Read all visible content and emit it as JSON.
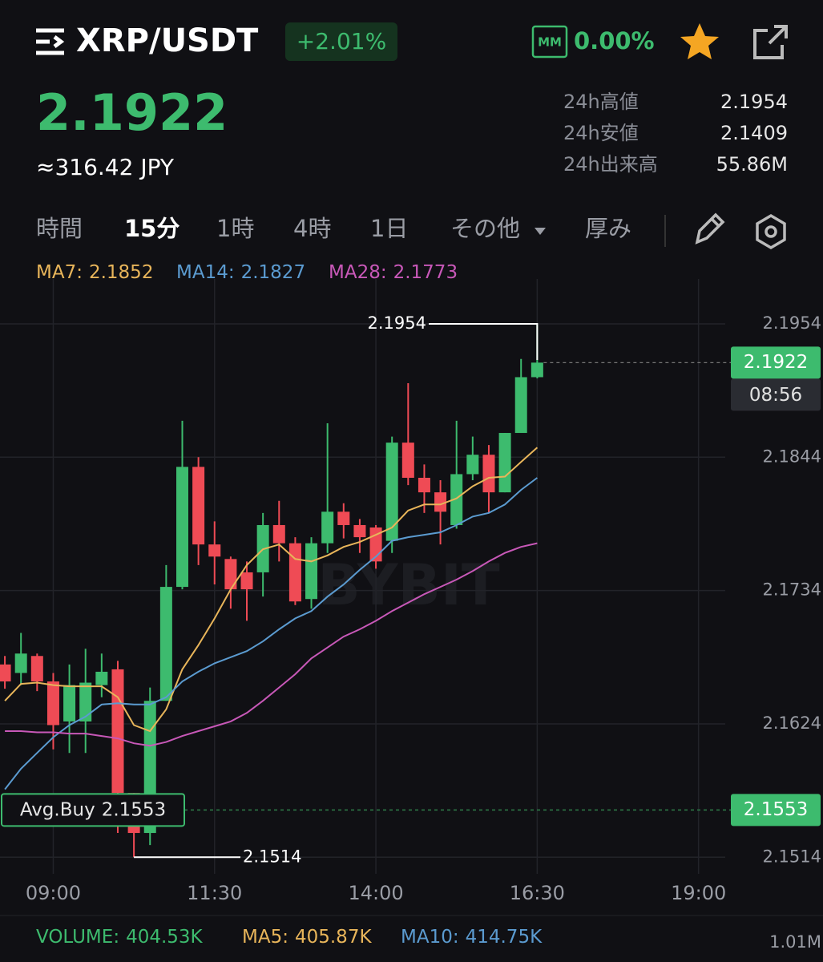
{
  "header": {
    "symbol": "XRP/USDT",
    "change": "+2.01%",
    "mm_badge": "MM",
    "mm_value": "0.00%"
  },
  "price": {
    "last": "2.1922",
    "jpy": "≈316.42 JPY"
  },
  "stats": [
    {
      "label": "24h高値",
      "value": "2.1954"
    },
    {
      "label": "24h安値",
      "value": "2.1409"
    },
    {
      "label": "24h出来高",
      "value": "55.86M"
    }
  ],
  "tabs": [
    "時間",
    "15分",
    "1時",
    "4時",
    "1日",
    "その他",
    "厚み"
  ],
  "active_tab": 1,
  "chart_data": {
    "type": "candlestick",
    "categories": [
      null,
      null,
      null,
      "09:00",
      null,
      null,
      null,
      null,
      null,
      null,
      null,
      null,
      null,
      "11:30",
      null,
      null,
      null,
      null,
      null,
      null,
      null,
      null,
      null,
      "14:00",
      null,
      null,
      null,
      null,
      null,
      null,
      null,
      null,
      null,
      "16:30",
      null,
      null,
      null,
      null,
      null,
      null,
      null,
      null,
      null,
      "19:00"
    ],
    "open": [
      2.1673,
      2.1666,
      2.168,
      2.1659,
      2.1626,
      2.1626,
      2.1656,
      2.1669,
      2.1567,
      2.1534,
      2.1643,
      2.1737,
      2.1836,
      2.1772,
      2.176,
      2.1749,
      2.1749,
      2.1788,
      2.1773,
      2.1727,
      2.1773,
      2.1799,
      2.1788,
      2.1786,
      2.1775,
      2.1856,
      2.1827,
      2.1815,
      2.1788,
      2.183,
      2.1846,
      2.1815,
      2.1864,
      2.191,
      null,
      null,
      null,
      null,
      null,
      null,
      null,
      null,
      null,
      null
    ],
    "high": [
      2.168,
      2.1699,
      2.1682,
      2.1666,
      2.1673,
      2.1686,
      2.1682,
      2.1676,
      2.1567,
      2.1654,
      2.1755,
      2.1874,
      2.1844,
      2.1791,
      2.1762,
      2.1758,
      2.1798,
      2.1808,
      2.1778,
      2.1778,
      2.1872,
      2.1806,
      2.1793,
      2.1788,
      2.1861,
      2.1905,
      2.1838,
      2.1825,
      2.1874,
      2.1861,
      2.1854,
      2.1864,
      2.1925,
      2.1954,
      null,
      null,
      null,
      null,
      null,
      null,
      null,
      null,
      null,
      null
    ],
    "low": [
      2.1653,
      2.1656,
      2.1651,
      2.1603,
      2.16,
      2.16,
      2.1646,
      2.1534,
      2.1514,
      2.1524,
      2.1643,
      2.1735,
      2.1755,
      2.1739,
      2.1719,
      2.1709,
      2.1729,
      2.1758,
      2.1722,
      2.1719,
      2.1765,
      2.1777,
      2.1765,
      2.1752,
      2.1765,
      2.1821,
      2.1798,
      2.1772,
      2.1785,
      2.1825,
      2.1798,
      2.1815,
      2.1864,
      2.1909,
      null,
      null,
      null,
      null,
      null,
      null,
      null,
      null,
      null,
      null
    ],
    "close": [
      2.1659,
      2.1682,
      2.1659,
      2.1623,
      2.1656,
      2.1658,
      2.1667,
      2.1567,
      2.1534,
      2.1643,
      2.1737,
      2.1836,
      2.1772,
      2.1762,
      2.1735,
      2.1735,
      2.1788,
      2.1773,
      2.1725,
      2.1773,
      2.1799,
      2.1788,
      2.1778,
      2.1758,
      2.1856,
      2.1827,
      2.1815,
      2.1799,
      2.183,
      2.1846,
      2.1815,
      2.1864,
      2.191,
      2.1922,
      null,
      null,
      null,
      null,
      null,
      null,
      null,
      null,
      null,
      null
    ],
    "up_color": "#3dbb6e",
    "down_color": "#ef4b55",
    "series": [
      {
        "name": "MA7:",
        "color": "#e8b55a",
        "current": 2.1852,
        "values": [
          2.1643,
          2.1657,
          2.1658,
          2.1656,
          2.1655,
          2.1655,
          2.1655,
          2.1646,
          2.1623,
          2.1618,
          2.1636,
          2.1669,
          2.1689,
          2.1711,
          2.1735,
          2.1755,
          2.1768,
          2.1772,
          2.176,
          2.1758,
          2.1763,
          2.177,
          2.1774,
          2.178,
          2.1786,
          2.18,
          2.1805,
          2.1805,
          2.181,
          2.182,
          2.1827,
          2.1828,
          2.184,
          2.1852,
          null,
          null,
          null,
          null,
          null,
          null,
          null,
          null,
          null,
          null
        ]
      },
      {
        "name": "MA14:",
        "color": "#5b9bd0",
        "current": 2.1827,
        "values": [
          2.157,
          2.1587,
          2.16,
          2.1613,
          2.1623,
          2.163,
          2.164,
          2.1641,
          2.164,
          2.164,
          2.1646,
          2.1659,
          2.1667,
          2.1674,
          2.1679,
          2.1684,
          2.1692,
          2.1702,
          2.1711,
          2.1717,
          2.1729,
          2.1739,
          2.1751,
          2.1762,
          2.1775,
          2.1778,
          2.178,
          2.1782,
          2.1788,
          2.1795,
          2.1798,
          2.1805,
          2.1817,
          2.1827,
          null,
          null,
          null,
          null,
          null,
          null,
          null,
          null,
          null,
          null
        ]
      },
      {
        "name": "MA28:",
        "color": "#c858b8",
        "current": 2.1773,
        "values": [
          2.1618,
          2.1618,
          2.1617,
          2.1617,
          2.1616,
          2.1616,
          2.1614,
          2.1612,
          2.1608,
          2.1606,
          2.1609,
          2.1614,
          2.1618,
          2.1622,
          2.1626,
          2.1633,
          2.1643,
          2.1654,
          2.1665,
          2.1678,
          2.1687,
          2.1696,
          2.1702,
          2.1709,
          2.1717,
          2.1724,
          2.1731,
          2.1737,
          2.1743,
          2.175,
          2.1758,
          2.1765,
          2.177,
          2.1773,
          null,
          null,
          null,
          null,
          null,
          null,
          null,
          null,
          null,
          null
        ]
      }
    ],
    "ylim": [
      2.1497,
      2.1991
    ],
    "yticks": [
      2.1954,
      2.1844,
      2.1734,
      2.1624,
      2.1514
    ],
    "grid": true,
    "watermark": "BYBIT",
    "last_price": 2.1922,
    "countdown": "08:56",
    "avg_buy": {
      "label": "Avg.Buy",
      "value": 2.1553
    },
    "high_marker": 2.1954,
    "low_marker": 2.1514,
    "volume_legend": [
      {
        "label": "VOLUME:",
        "value": "404.53K",
        "color": "#3dbb6e"
      },
      {
        "label": "MA5:",
        "value": "405.87K",
        "color": "#e8b55a"
      },
      {
        "label": "MA10:",
        "value": "414.75K",
        "color": "#5b9bd0"
      }
    ],
    "volume_axis_label": "1.01M"
  }
}
